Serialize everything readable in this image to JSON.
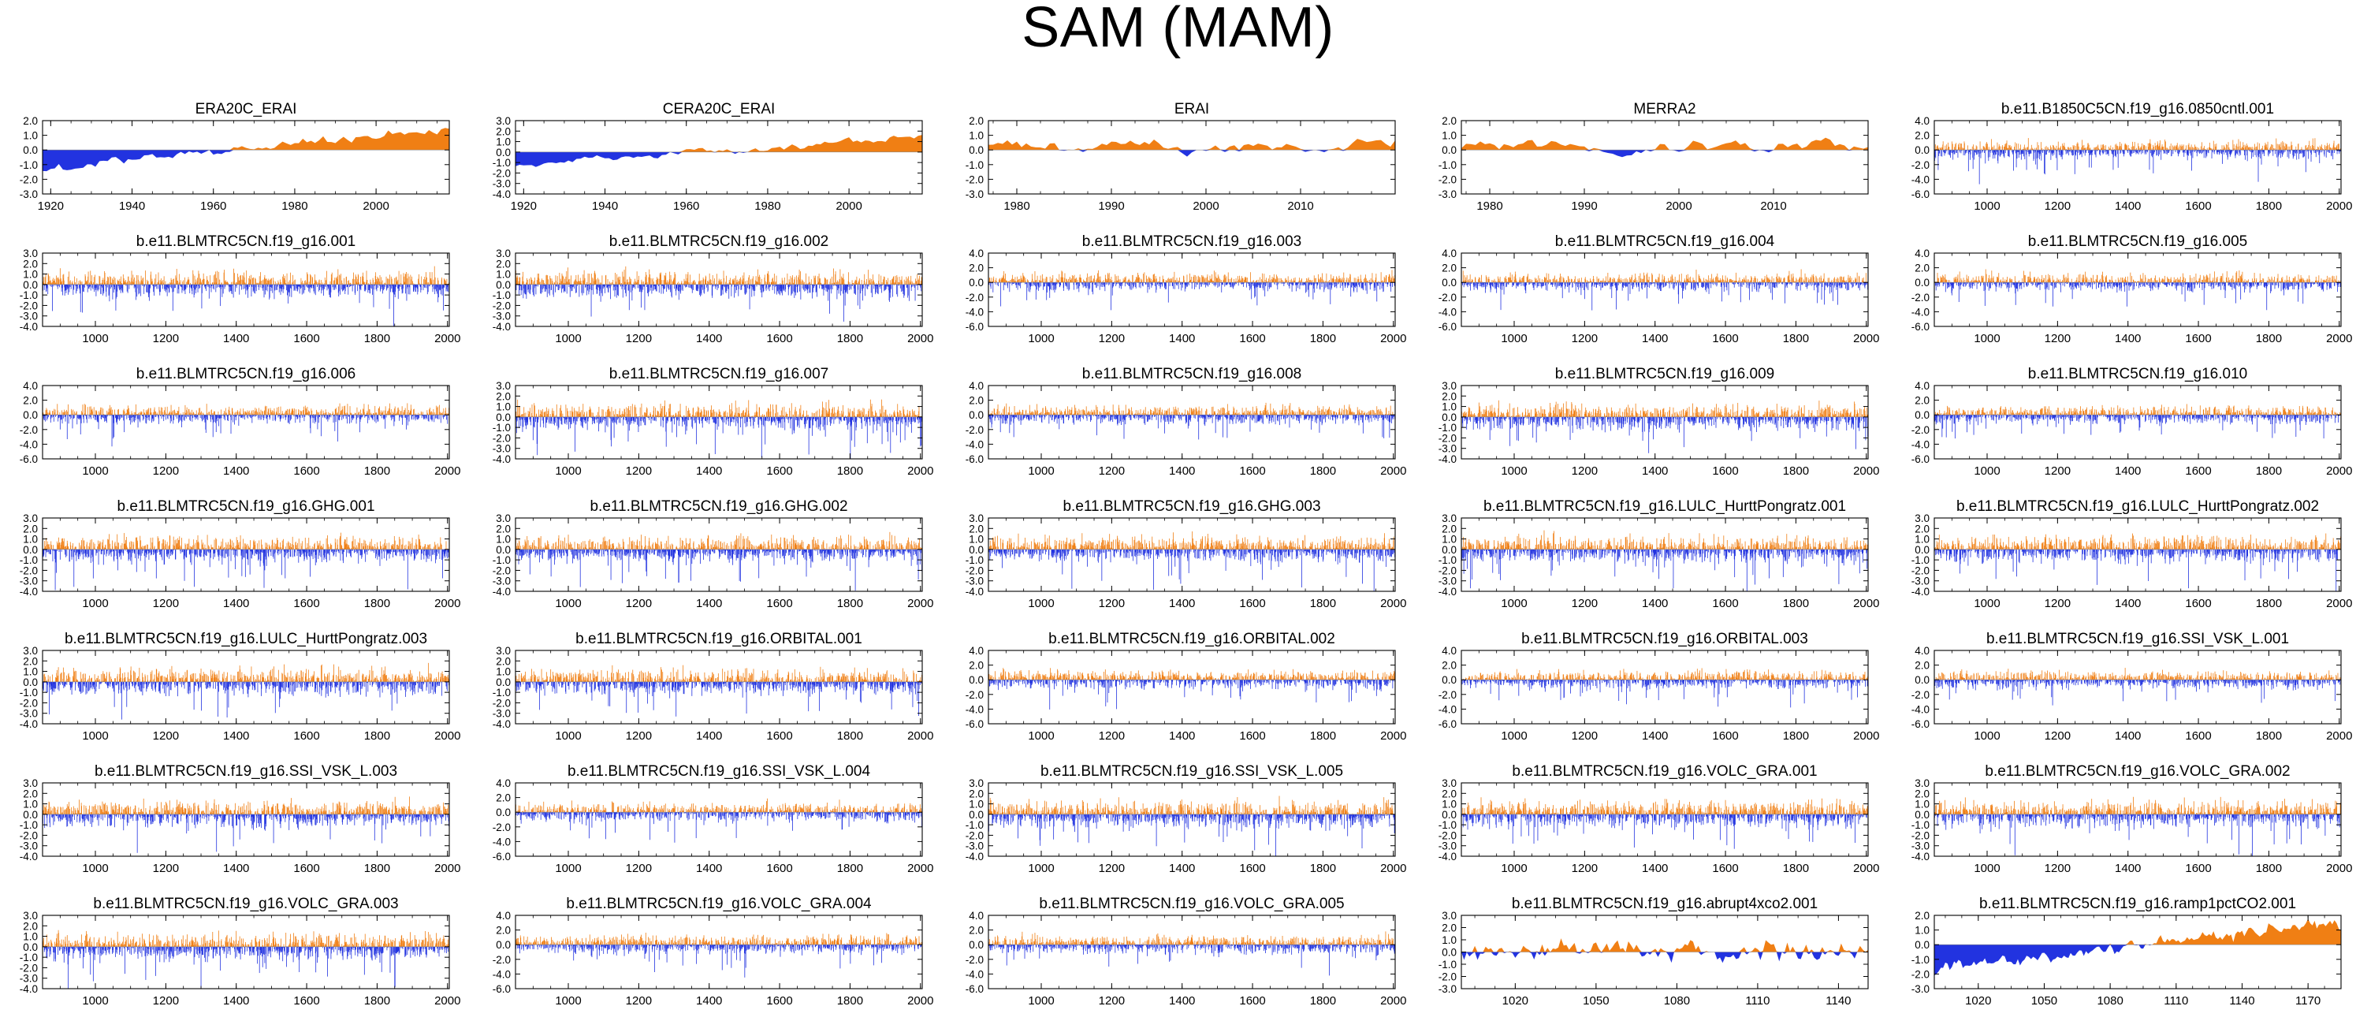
{
  "figure_title": "SAM (MAM)",
  "colors": {
    "positive": "#f07f14",
    "negative": "#2233e0",
    "axis": "#000000"
  },
  "chart_data": [
    {
      "type": "area",
      "title": "ERA20C_ERAI",
      "xlim": [
        1918,
        2018
      ],
      "ylim": [
        -3.0,
        2.0
      ],
      "yticks": [
        2.0,
        1.0,
        0.0,
        -1.0,
        -2.0,
        -3.0
      ],
      "xticks": [
        1920,
        1940,
        1960,
        1980,
        2000
      ],
      "regime": "coarse",
      "seed": 1
    },
    {
      "type": "area",
      "title": "CERA20C_ERAI",
      "xlim": [
        1918,
        2018
      ],
      "ylim": [
        -4.0,
        3.0
      ],
      "yticks": [
        3.0,
        2.0,
        1.0,
        0.0,
        -1.0,
        -2.0,
        -3.0,
        -4.0
      ],
      "xticks": [
        1920,
        1940,
        1960,
        1980,
        2000
      ],
      "regime": "coarse",
      "seed": 2
    },
    {
      "type": "area",
      "title": "ERAI",
      "xlim": [
        1977,
        2020
      ],
      "ylim": [
        -3.0,
        2.0
      ],
      "yticks": [
        2.0,
        1.0,
        0.0,
        -1.0,
        -2.0,
        -3.0
      ],
      "xticks": [
        1980,
        1990,
        2000,
        2010
      ],
      "regime": "smooth",
      "seed": 3
    },
    {
      "type": "area",
      "title": "MERRA2",
      "xlim": [
        1977,
        2020
      ],
      "ylim": [
        -3.0,
        2.0
      ],
      "yticks": [
        2.0,
        1.0,
        0.0,
        -1.0,
        -2.0,
        -3.0
      ],
      "xticks": [
        1980,
        1990,
        2000,
        2010
      ],
      "regime": "smooth",
      "seed": 4
    },
    {
      "type": "area",
      "title": "b.e11.B1850C5CN.f19_g16.0850cntl.001",
      "xlim": [
        850,
        2005
      ],
      "ylim": [
        -6.0,
        4.0
      ],
      "yticks": [
        4.0,
        2.0,
        0.0,
        -2.0,
        -4.0,
        -6.0
      ],
      "xticks": [
        1000,
        1200,
        1400,
        1600,
        1800,
        2000
      ],
      "regime": "dense",
      "seed": 5
    },
    {
      "type": "area",
      "title": "b.e11.BLMTRC5CN.f19_g16.001",
      "xlim": [
        850,
        2005
      ],
      "ylim": [
        -4.0,
        3.0
      ],
      "yticks": [
        3.0,
        2.0,
        1.0,
        0.0,
        -1.0,
        -2.0,
        -3.0,
        -4.0
      ],
      "xticks": [
        1000,
        1200,
        1400,
        1600,
        1800,
        2000
      ],
      "regime": "dense",
      "seed": 6
    },
    {
      "type": "area",
      "title": "b.e11.BLMTRC5CN.f19_g16.002",
      "xlim": [
        850,
        2005
      ],
      "ylim": [
        -4.0,
        3.0
      ],
      "yticks": [
        3.0,
        2.0,
        1.0,
        0.0,
        -1.0,
        -2.0,
        -3.0,
        -4.0
      ],
      "xticks": [
        1000,
        1200,
        1400,
        1600,
        1800,
        2000
      ],
      "regime": "dense",
      "seed": 7
    },
    {
      "type": "area",
      "title": "b.e11.BLMTRC5CN.f19_g16.003",
      "xlim": [
        850,
        2005
      ],
      "ylim": [
        -6.0,
        4.0
      ],
      "yticks": [
        4.0,
        2.0,
        0.0,
        -2.0,
        -4.0,
        -6.0
      ],
      "xticks": [
        1000,
        1200,
        1400,
        1600,
        1800,
        2000
      ],
      "regime": "dense",
      "seed": 8
    },
    {
      "type": "area",
      "title": "b.e11.BLMTRC5CN.f19_g16.004",
      "xlim": [
        850,
        2005
      ],
      "ylim": [
        -6.0,
        4.0
      ],
      "yticks": [
        4.0,
        2.0,
        0.0,
        -2.0,
        -4.0,
        -6.0
      ],
      "xticks": [
        1000,
        1200,
        1400,
        1600,
        1800,
        2000
      ],
      "regime": "dense",
      "seed": 9
    },
    {
      "type": "area",
      "title": "b.e11.BLMTRC5CN.f19_g16.005",
      "xlim": [
        850,
        2005
      ],
      "ylim": [
        -6.0,
        4.0
      ],
      "yticks": [
        4.0,
        2.0,
        0.0,
        -2.0,
        -4.0,
        -6.0
      ],
      "xticks": [
        1000,
        1200,
        1400,
        1600,
        1800,
        2000
      ],
      "regime": "dense",
      "seed": 10
    },
    {
      "type": "area",
      "title": "b.e11.BLMTRC5CN.f19_g16.006",
      "xlim": [
        850,
        2005
      ],
      "ylim": [
        -6.0,
        4.0
      ],
      "yticks": [
        4.0,
        2.0,
        0.0,
        -2.0,
        -4.0,
        -6.0
      ],
      "xticks": [
        1000,
        1200,
        1400,
        1600,
        1800,
        2000
      ],
      "regime": "dense",
      "seed": 11
    },
    {
      "type": "area",
      "title": "b.e11.BLMTRC5CN.f19_g16.007",
      "xlim": [
        850,
        2005
      ],
      "ylim": [
        -4.0,
        3.0
      ],
      "yticks": [
        3.0,
        2.0,
        1.0,
        0.0,
        -1.0,
        -2.0,
        -3.0,
        -4.0
      ],
      "xticks": [
        1000,
        1200,
        1400,
        1600,
        1800,
        2000
      ],
      "regime": "dense",
      "seed": 12
    },
    {
      "type": "area",
      "title": "b.e11.BLMTRC5CN.f19_g16.008",
      "xlim": [
        850,
        2005
      ],
      "ylim": [
        -6.0,
        4.0
      ],
      "yticks": [
        4.0,
        2.0,
        0.0,
        -2.0,
        -4.0,
        -6.0
      ],
      "xticks": [
        1000,
        1200,
        1400,
        1600,
        1800,
        2000
      ],
      "regime": "dense",
      "seed": 13
    },
    {
      "type": "area",
      "title": "b.e11.BLMTRC5CN.f19_g16.009",
      "xlim": [
        850,
        2005
      ],
      "ylim": [
        -4.0,
        3.0
      ],
      "yticks": [
        3.0,
        2.0,
        1.0,
        0.0,
        -1.0,
        -2.0,
        -3.0,
        -4.0
      ],
      "xticks": [
        1000,
        1200,
        1400,
        1600,
        1800,
        2000
      ],
      "regime": "dense",
      "seed": 14
    },
    {
      "type": "area",
      "title": "b.e11.BLMTRC5CN.f19_g16.010",
      "xlim": [
        850,
        2005
      ],
      "ylim": [
        -6.0,
        4.0
      ],
      "yticks": [
        4.0,
        2.0,
        0.0,
        -2.0,
        -4.0,
        -6.0
      ],
      "xticks": [
        1000,
        1200,
        1400,
        1600,
        1800,
        2000
      ],
      "regime": "dense",
      "seed": 15
    },
    {
      "type": "area",
      "title": "b.e11.BLMTRC5CN.f19_g16.GHG.001",
      "xlim": [
        850,
        2005
      ],
      "ylim": [
        -4.0,
        3.0
      ],
      "yticks": [
        3.0,
        2.0,
        1.0,
        0.0,
        -1.0,
        -2.0,
        -3.0,
        -4.0
      ],
      "xticks": [
        1000,
        1200,
        1400,
        1600,
        1800,
        2000
      ],
      "regime": "dense",
      "seed": 16
    },
    {
      "type": "area",
      "title": "b.e11.BLMTRC5CN.f19_g16.GHG.002",
      "xlim": [
        850,
        2005
      ],
      "ylim": [
        -4.0,
        3.0
      ],
      "yticks": [
        3.0,
        2.0,
        1.0,
        0.0,
        -1.0,
        -2.0,
        -3.0,
        -4.0
      ],
      "xticks": [
        1000,
        1200,
        1400,
        1600,
        1800,
        2000
      ],
      "regime": "dense",
      "seed": 17
    },
    {
      "type": "area",
      "title": "b.e11.BLMTRC5CN.f19_g16.GHG.003",
      "xlim": [
        850,
        2005
      ],
      "ylim": [
        -4.0,
        3.0
      ],
      "yticks": [
        3.0,
        2.0,
        1.0,
        0.0,
        -1.0,
        -2.0,
        -3.0,
        -4.0
      ],
      "xticks": [
        1000,
        1200,
        1400,
        1600,
        1800,
        2000
      ],
      "regime": "dense",
      "seed": 18
    },
    {
      "type": "area",
      "title": "b.e11.BLMTRC5CN.f19_g16.LULC_HurttPongratz.001",
      "xlim": [
        850,
        2005
      ],
      "ylim": [
        -4.0,
        3.0
      ],
      "yticks": [
        3.0,
        2.0,
        1.0,
        0.0,
        -1.0,
        -2.0,
        -3.0,
        -4.0
      ],
      "xticks": [
        1000,
        1200,
        1400,
        1600,
        1800,
        2000
      ],
      "regime": "dense",
      "seed": 19
    },
    {
      "type": "area",
      "title": "b.e11.BLMTRC5CN.f19_g16.LULC_HurttPongratz.002",
      "xlim": [
        850,
        2005
      ],
      "ylim": [
        -4.0,
        3.0
      ],
      "yticks": [
        3.0,
        2.0,
        1.0,
        0.0,
        -1.0,
        -2.0,
        -3.0,
        -4.0
      ],
      "xticks": [
        1000,
        1200,
        1400,
        1600,
        1800,
        2000
      ],
      "regime": "dense",
      "seed": 20
    },
    {
      "type": "area",
      "title": "b.e11.BLMTRC5CN.f19_g16.LULC_HurttPongratz.003",
      "xlim": [
        850,
        2005
      ],
      "ylim": [
        -4.0,
        3.0
      ],
      "yticks": [
        3.0,
        2.0,
        1.0,
        0.0,
        -1.0,
        -2.0,
        -3.0,
        -4.0
      ],
      "xticks": [
        1000,
        1200,
        1400,
        1600,
        1800,
        2000
      ],
      "regime": "dense",
      "seed": 21
    },
    {
      "type": "area",
      "title": "b.e11.BLMTRC5CN.f19_g16.ORBITAL.001",
      "xlim": [
        850,
        2005
      ],
      "ylim": [
        -4.0,
        3.0
      ],
      "yticks": [
        3.0,
        2.0,
        1.0,
        0.0,
        -1.0,
        -2.0,
        -3.0,
        -4.0
      ],
      "xticks": [
        1000,
        1200,
        1400,
        1600,
        1800,
        2000
      ],
      "regime": "dense",
      "seed": 22
    },
    {
      "type": "area",
      "title": "b.e11.BLMTRC5CN.f19_g16.ORBITAL.002",
      "xlim": [
        850,
        2005
      ],
      "ylim": [
        -6.0,
        4.0
      ],
      "yticks": [
        4.0,
        2.0,
        0.0,
        -2.0,
        -4.0,
        -6.0
      ],
      "xticks": [
        1000,
        1200,
        1400,
        1600,
        1800,
        2000
      ],
      "regime": "dense",
      "seed": 23
    },
    {
      "type": "area",
      "title": "b.e11.BLMTRC5CN.f19_g16.ORBITAL.003",
      "xlim": [
        850,
        2005
      ],
      "ylim": [
        -6.0,
        4.0
      ],
      "yticks": [
        4.0,
        2.0,
        0.0,
        -2.0,
        -4.0,
        -6.0
      ],
      "xticks": [
        1000,
        1200,
        1400,
        1600,
        1800,
        2000
      ],
      "regime": "dense",
      "seed": 24
    },
    {
      "type": "area",
      "title": "b.e11.BLMTRC5CN.f19_g16.SSI_VSK_L.001",
      "xlim": [
        850,
        2005
      ],
      "ylim": [
        -6.0,
        4.0
      ],
      "yticks": [
        4.0,
        2.0,
        0.0,
        -2.0,
        -4.0,
        -6.0
      ],
      "xticks": [
        1000,
        1200,
        1400,
        1600,
        1800,
        2000
      ],
      "regime": "dense",
      "seed": 25
    },
    {
      "type": "area",
      "title": "b.e11.BLMTRC5CN.f19_g16.SSI_VSK_L.003",
      "xlim": [
        850,
        2005
      ],
      "ylim": [
        -4.0,
        3.0
      ],
      "yticks": [
        3.0,
        2.0,
        1.0,
        0.0,
        -1.0,
        -2.0,
        -3.0,
        -4.0
      ],
      "xticks": [
        1000,
        1200,
        1400,
        1600,
        1800,
        2000
      ],
      "regime": "dense",
      "seed": 26
    },
    {
      "type": "area",
      "title": "b.e11.BLMTRC5CN.f19_g16.SSI_VSK_L.004",
      "xlim": [
        850,
        2005
      ],
      "ylim": [
        -6.0,
        4.0
      ],
      "yticks": [
        4.0,
        2.0,
        0.0,
        -2.0,
        -4.0,
        -6.0
      ],
      "xticks": [
        1000,
        1200,
        1400,
        1600,
        1800,
        2000
      ],
      "regime": "dense",
      "seed": 27
    },
    {
      "type": "area",
      "title": "b.e11.BLMTRC5CN.f19_g16.SSI_VSK_L.005",
      "xlim": [
        850,
        2005
      ],
      "ylim": [
        -4.0,
        3.0
      ],
      "yticks": [
        3.0,
        2.0,
        1.0,
        0.0,
        -1.0,
        -2.0,
        -3.0,
        -4.0
      ],
      "xticks": [
        1000,
        1200,
        1400,
        1600,
        1800,
        2000
      ],
      "regime": "dense",
      "seed": 28
    },
    {
      "type": "area",
      "title": "b.e11.BLMTRC5CN.f19_g16.VOLC_GRA.001",
      "xlim": [
        850,
        2005
      ],
      "ylim": [
        -4.0,
        3.0
      ],
      "yticks": [
        3.0,
        2.0,
        1.0,
        0.0,
        -1.0,
        -2.0,
        -3.0,
        -4.0
      ],
      "xticks": [
        1000,
        1200,
        1400,
        1600,
        1800,
        2000
      ],
      "regime": "dense",
      "seed": 29
    },
    {
      "type": "area",
      "title": "b.e11.BLMTRC5CN.f19_g16.VOLC_GRA.002",
      "xlim": [
        850,
        2005
      ],
      "ylim": [
        -4.0,
        3.0
      ],
      "yticks": [
        3.0,
        2.0,
        1.0,
        0.0,
        -1.0,
        -2.0,
        -3.0,
        -4.0
      ],
      "xticks": [
        1000,
        1200,
        1400,
        1600,
        1800,
        2000
      ],
      "regime": "dense",
      "seed": 30
    },
    {
      "type": "area",
      "title": "b.e11.BLMTRC5CN.f19_g16.VOLC_GRA.003",
      "xlim": [
        850,
        2005
      ],
      "ylim": [
        -4.0,
        3.0
      ],
      "yticks": [
        3.0,
        2.0,
        1.0,
        0.0,
        -1.0,
        -2.0,
        -3.0,
        -4.0
      ],
      "xticks": [
        1000,
        1200,
        1400,
        1600,
        1800,
        2000
      ],
      "regime": "dense",
      "seed": 31
    },
    {
      "type": "area",
      "title": "b.e11.BLMTRC5CN.f19_g16.VOLC_GRA.004",
      "xlim": [
        850,
        2005
      ],
      "ylim": [
        -6.0,
        4.0
      ],
      "yticks": [
        4.0,
        2.0,
        0.0,
        -2.0,
        -4.0,
        -6.0
      ],
      "xticks": [
        1000,
        1200,
        1400,
        1600,
        1800,
        2000
      ],
      "regime": "dense",
      "seed": 32
    },
    {
      "type": "area",
      "title": "b.e11.BLMTRC5CN.f19_g16.VOLC_GRA.005",
      "xlim": [
        850,
        2005
      ],
      "ylim": [
        -6.0,
        4.0
      ],
      "yticks": [
        4.0,
        2.0,
        0.0,
        -2.0,
        -4.0,
        -6.0
      ],
      "xticks": [
        1000,
        1200,
        1400,
        1600,
        1800,
        2000
      ],
      "regime": "dense",
      "seed": 33
    },
    {
      "type": "area",
      "title": "b.e11.BLMTRC5CN.f19_g16.abrupt4xco2.001",
      "xlim": [
        1000,
        1151
      ],
      "ylim": [
        -3.0,
        3.0
      ],
      "yticks": [
        3.0,
        2.0,
        1.0,
        0.0,
        -1.0,
        -2.0,
        -3.0
      ],
      "xticks": [
        1020,
        1050,
        1080,
        1110,
        1140
      ],
      "regime": "medium",
      "seed": 34
    },
    {
      "type": "area",
      "title": "b.e11.BLMTRC5CN.f19_g16.ramp1pctCO2.001",
      "xlim": [
        1000,
        1185
      ],
      "ylim": [
        -3.0,
        2.0
      ],
      "yticks": [
        2.0,
        1.0,
        0.0,
        -1.0,
        -2.0,
        -3.0
      ],
      "xticks": [
        1020,
        1050,
        1080,
        1110,
        1140,
        1170
      ],
      "regime": "ramp",
      "seed": 35
    }
  ]
}
